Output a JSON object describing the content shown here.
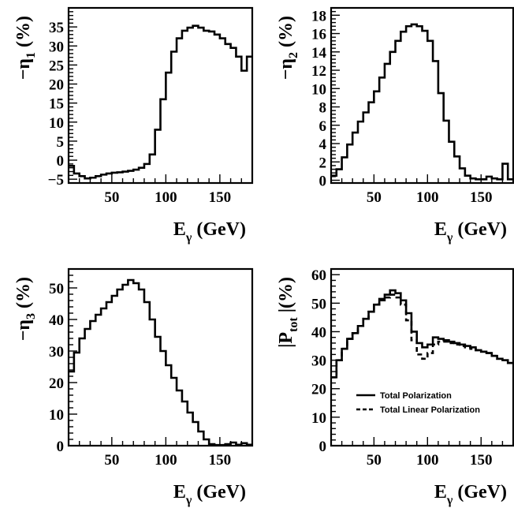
{
  "chart_data": [
    {
      "type": "line",
      "ylabel": "−η₁ (%)",
      "ylabel_parts": {
        "prefix": "−η",
        "sub": "1",
        "suffix": "(%)"
      },
      "xlabel": "Eγ (GeV)",
      "xlabel_parts": {
        "main": "E",
        "sub": "γ",
        "suffix": "(GeV)"
      },
      "xlim": [
        10,
        180
      ],
      "ylim": [
        -6,
        40
      ],
      "xticks": [
        50,
        100,
        150
      ],
      "yticks": [
        -5,
        0,
        5,
        10,
        15,
        20,
        25,
        30,
        35
      ],
      "series": [
        {
          "style": "solid",
          "bin_width": 5,
          "x_start": 10,
          "values": [
            -1.5,
            -3.5,
            -4.2,
            -4.8,
            -4.6,
            -4.2,
            -3.8,
            -3.5,
            -3.3,
            -3.2,
            -3.0,
            -2.8,
            -2.5,
            -2.0,
            -1.0,
            1.5,
            8,
            16,
            23,
            28.5,
            32,
            34,
            34.8,
            35.3,
            34.8,
            34,
            33.8,
            33,
            32,
            30.5,
            29.5,
            27.2,
            23.5,
            27.2
          ]
        }
      ]
    },
    {
      "type": "line",
      "ylabel": "−η₂ (%)",
      "ylabel_parts": {
        "prefix": "−η",
        "sub": "2",
        "suffix": "(%)"
      },
      "xlabel": "Eγ (GeV)",
      "xlabel_parts": {
        "main": "E",
        "sub": "γ",
        "suffix": "(GeV)"
      },
      "xlim": [
        10,
        180
      ],
      "ylim": [
        -0.3,
        18.8
      ],
      "xticks": [
        50,
        100,
        150
      ],
      "yticks": [
        0,
        2,
        4,
        6,
        8,
        10,
        12,
        14,
        16,
        18
      ],
      "series": [
        {
          "style": "solid",
          "bin_width": 5,
          "x_start": 10,
          "values": [
            0.5,
            1.2,
            2.5,
            3.9,
            5.2,
            6.4,
            7.4,
            8.5,
            9.7,
            11.2,
            12.7,
            14.0,
            15.2,
            16.2,
            16.8,
            17.0,
            16.8,
            16.3,
            15.2,
            13.0,
            9.5,
            6.5,
            4.2,
            2.6,
            1.3,
            0.5,
            0.2,
            0.1,
            0.1,
            0.4,
            0.2,
            0.1,
            1.8,
            0.1
          ]
        }
      ]
    },
    {
      "type": "line",
      "ylabel": "−η₃ (%)",
      "ylabel_parts": {
        "prefix": "−η",
        "sub": "3",
        "suffix": "(%)"
      },
      "xlabel": "Eγ (GeV)",
      "xlabel_parts": {
        "main": "E",
        "sub": "γ",
        "suffix": "(GeV)"
      },
      "xlim": [
        10,
        180
      ],
      "ylim": [
        0,
        56
      ],
      "xticks": [
        50,
        100,
        150
      ],
      "yticks": [
        0,
        10,
        20,
        30,
        40,
        50
      ],
      "series": [
        {
          "style": "solid",
          "bin_width": 5,
          "x_start": 10,
          "values": [
            23.5,
            29.5,
            34,
            37,
            39.5,
            41.5,
            43.5,
            45.5,
            47.5,
            49.5,
            51,
            52.5,
            51.5,
            49.5,
            45.5,
            40,
            34.5,
            30,
            25.5,
            21.5,
            17.5,
            14,
            10.5,
            7.5,
            4.5,
            2,
            0.5,
            0.2,
            0.2,
            0.5,
            1,
            0.3,
            0.8,
            0.3
          ]
        }
      ]
    },
    {
      "type": "line",
      "ylabel": "|Ptot|(%)",
      "ylabel_parts": {
        "prefix": "|P",
        "sub": "tot",
        "suffix": "|(%)"
      },
      "xlabel": "Eγ (GeV)",
      "xlabel_parts": {
        "main": "E",
        "sub": "γ",
        "suffix": "(GeV)"
      },
      "xlim": [
        10,
        180
      ],
      "ylim": [
        0,
        62
      ],
      "xticks": [
        50,
        100,
        150
      ],
      "yticks": [
        0,
        10,
        20,
        30,
        40,
        50,
        60
      ],
      "legend": {
        "position": "lower-left"
      },
      "series": [
        {
          "name": "Total Polarization",
          "style": "solid",
          "bin_width": 5,
          "x_start": 10,
          "values": [
            24,
            30,
            34,
            37.5,
            39.5,
            42,
            44.5,
            47,
            49.5,
            51.5,
            53,
            54.5,
            53.5,
            51,
            46.5,
            40,
            36,
            34.5,
            35.5,
            38,
            37.5,
            37,
            36.5,
            36,
            35.5,
            35,
            34.5,
            33.5,
            33,
            32.5,
            31.5,
            30.5,
            30,
            29
          ]
        },
        {
          "name": "Total Linear Polarization",
          "style": "dashed",
          "bin_width": 5,
          "x_start": 10,
          "values": [
            24,
            30,
            34,
            37.5,
            39.5,
            42,
            44.5,
            47,
            49.5,
            51,
            52,
            53,
            52,
            49.5,
            44,
            37,
            32,
            30.5,
            32.5,
            35.5,
            36.5,
            36.5,
            36,
            35.5,
            35,
            34.5,
            34,
            33.5,
            33,
            32.5,
            31.5,
            30.5,
            30,
            29
          ]
        }
      ]
    }
  ]
}
